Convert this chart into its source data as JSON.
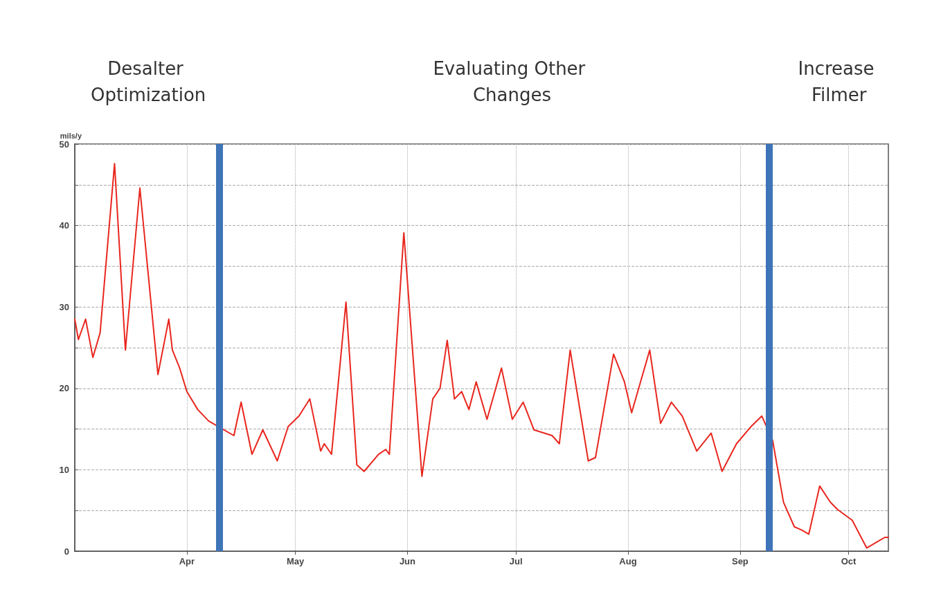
{
  "chart_data": {
    "type": "line",
    "ylabel": "mils/y",
    "annotations": [
      "Desalter Optimization",
      "Evaluating Other Changes",
      "Increase Filmer"
    ],
    "x": [
      "--03-01",
      "--03-02",
      "--03-04",
      "--03-06",
      "--03-08",
      "--03-12",
      "--03-15",
      "--03-19",
      "--03-24",
      "--03-27",
      "--03-28",
      "--03-30",
      "--04-01",
      "--04-04",
      "--04-07",
      "--04-10",
      "--04-14",
      "--04-16",
      "--04-19",
      "--04-22",
      "--04-26",
      "--04-29",
      "--05-02",
      "--05-05",
      "--05-08",
      "--05-09",
      "--05-11",
      "--05-15",
      "--05-18",
      "--05-20",
      "--05-24",
      "--05-26",
      "--05-27",
      "--05-31",
      "--06-05",
      "--06-08",
      "--06-10",
      "--06-12",
      "--06-14",
      "--06-16",
      "--06-18",
      "--06-20",
      "--06-23",
      "--06-27",
      "--06-30",
      "--07-03",
      "--07-06",
      "--07-11",
      "--07-13",
      "--07-16",
      "--07-21",
      "--07-23",
      "--07-28",
      "--07-31",
      "--08-02",
      "--08-07",
      "--08-10",
      "--08-13",
      "--08-16",
      "--08-20",
      "--08-24",
      "--08-27",
      "--08-31",
      "--09-04",
      "--09-07",
      "--09-10",
      "--09-13",
      "--09-16",
      "--09-18",
      "--09-20",
      "--09-23",
      "--09-26",
      "--09-28",
      "--10-02",
      "--10-06",
      "--10-11",
      "--10-12"
    ],
    "series": [
      {
        "color": "#e8261e",
        "values": [
          28.5,
          26,
          28.5,
          23.8,
          26.8,
          47.6,
          24.7,
          44.6,
          21.7,
          28.5,
          24.7,
          22.5,
          19.6,
          17.4,
          16,
          null,
          14.2,
          18.3,
          11.9,
          14.9,
          11.1,
          15.3,
          16.6,
          18.7,
          12.3,
          13.2,
          11.9,
          30.6,
          10.6,
          9.8,
          11.9,
          12.5,
          11.9,
          39.1,
          9.2,
          18.7,
          20,
          25.9,
          18.7,
          19.6,
          17.4,
          20.8,
          16.2,
          22.5,
          16.2,
          18.3,
          14.9,
          14.2,
          13.2,
          24.7,
          11.1,
          11.5,
          24.2,
          20.8,
          17,
          24.7,
          15.7,
          18.3,
          16.6,
          12.3,
          14.5,
          9.8,
          13.2,
          15.3,
          16.6,
          13.6,
          6,
          3,
          2.6,
          2.1,
          8,
          6,
          5.1,
          3.8,
          0.4,
          1.7,
          1.7
        ]
      }
    ],
    "xlim": [
      "--03-01",
      "--10-12"
    ],
    "xticks": [
      {
        "value": "--04-01",
        "label": "Apr"
      },
      {
        "value": "--05-01",
        "label": "May"
      },
      {
        "value": "--06-01",
        "label": "Jun"
      },
      {
        "value": "--07-01",
        "label": "Jul"
      },
      {
        "value": "--08-01",
        "label": "Aug"
      },
      {
        "value": "--09-01",
        "label": "Sep"
      },
      {
        "value": "--10-01",
        "label": "Oct"
      }
    ],
    "ylim": [
      0,
      50
    ],
    "yticks": [
      0,
      {
        "value": 5,
        "label": null
      },
      10,
      {
        "value": 15,
        "label": null
      },
      20,
      {
        "value": 25,
        "label": null
      },
      30,
      {
        "value": 35,
        "label": null
      },
      40,
      {
        "value": 45,
        "label": null
      },
      50
    ],
    "ref_lines": [
      {
        "axis": "x",
        "value": "--04-10",
        "color": "#3f74b8"
      },
      {
        "axis": "x",
        "value": "--09-09",
        "color": "#3f74b8"
      }
    ],
    "grid": true,
    "marker": "none",
    "line_style": "solid"
  }
}
